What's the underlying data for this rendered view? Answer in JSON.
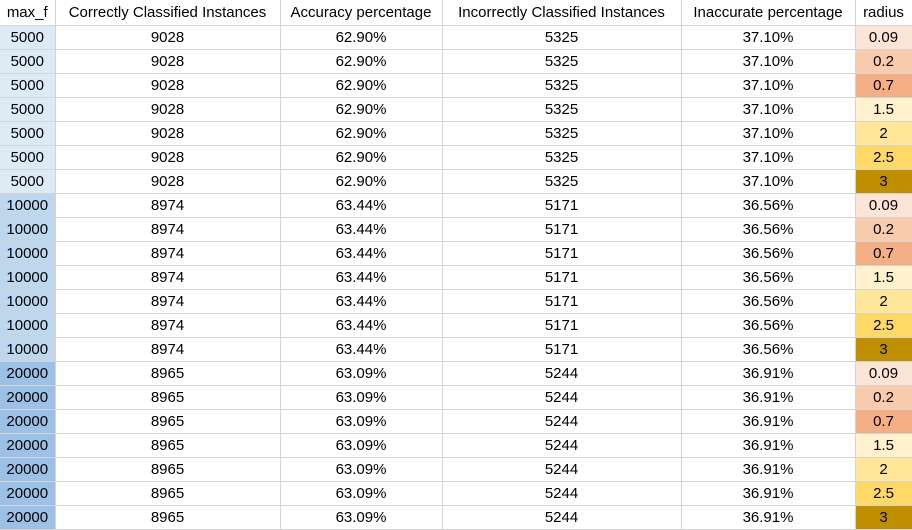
{
  "columns": [
    "max_f",
    "Correctly Classified Instances",
    "Accuracy percentage",
    "Incorrectly Classified Instances",
    "Inaccurate percentage",
    "radius"
  ],
  "rows": [
    {
      "max_f": "5000",
      "correct": "9028",
      "acc": "62.90%",
      "incorrect": "5325",
      "inacc": "37.10%",
      "radius": "0.09",
      "max_f_color": "#ddebf7",
      "radius_color": "#fce4d6"
    },
    {
      "max_f": "5000",
      "correct": "9028",
      "acc": "62.90%",
      "incorrect": "5325",
      "inacc": "37.10%",
      "radius": "0.2",
      "max_f_color": "#ddebf7",
      "radius_color": "#f8cbad"
    },
    {
      "max_f": "5000",
      "correct": "9028",
      "acc": "62.90%",
      "incorrect": "5325",
      "inacc": "37.10%",
      "radius": "0.7",
      "max_f_color": "#ddebf7",
      "radius_color": "#f4b084"
    },
    {
      "max_f": "5000",
      "correct": "9028",
      "acc": "62.90%",
      "incorrect": "5325",
      "inacc": "37.10%",
      "radius": "1.5",
      "max_f_color": "#ddebf7",
      "radius_color": "#fff2cc"
    },
    {
      "max_f": "5000",
      "correct": "9028",
      "acc": "62.90%",
      "incorrect": "5325",
      "inacc": "37.10%",
      "radius": "2",
      "max_f_color": "#ddebf7",
      "radius_color": "#ffe699"
    },
    {
      "max_f": "5000",
      "correct": "9028",
      "acc": "62.90%",
      "incorrect": "5325",
      "inacc": "37.10%",
      "radius": "2.5",
      "max_f_color": "#ddebf7",
      "radius_color": "#ffd966"
    },
    {
      "max_f": "5000",
      "correct": "9028",
      "acc": "62.90%",
      "incorrect": "5325",
      "inacc": "37.10%",
      "radius": "3",
      "max_f_color": "#ddebf7",
      "radius_color": "#bf8f00"
    },
    {
      "max_f": "10000",
      "correct": "8974",
      "acc": "63.44%",
      "incorrect": "5171",
      "inacc": "36.56%",
      "radius": "0.09",
      "max_f_color": "#bdd7ee",
      "radius_color": "#fce4d6"
    },
    {
      "max_f": "10000",
      "correct": "8974",
      "acc": "63.44%",
      "incorrect": "5171",
      "inacc": "36.56%",
      "radius": "0.2",
      "max_f_color": "#bdd7ee",
      "radius_color": "#f8cbad"
    },
    {
      "max_f": "10000",
      "correct": "8974",
      "acc": "63.44%",
      "incorrect": "5171",
      "inacc": "36.56%",
      "radius": "0.7",
      "max_f_color": "#bdd7ee",
      "radius_color": "#f4b084"
    },
    {
      "max_f": "10000",
      "correct": "8974",
      "acc": "63.44%",
      "incorrect": "5171",
      "inacc": "36.56%",
      "radius": "1.5",
      "max_f_color": "#bdd7ee",
      "radius_color": "#fff2cc"
    },
    {
      "max_f": "10000",
      "correct": "8974",
      "acc": "63.44%",
      "incorrect": "5171",
      "inacc": "36.56%",
      "radius": "2",
      "max_f_color": "#bdd7ee",
      "radius_color": "#ffe699"
    },
    {
      "max_f": "10000",
      "correct": "8974",
      "acc": "63.44%",
      "incorrect": "5171",
      "inacc": "36.56%",
      "radius": "2.5",
      "max_f_color": "#bdd7ee",
      "radius_color": "#ffd966"
    },
    {
      "max_f": "10000",
      "correct": "8974",
      "acc": "63.44%",
      "incorrect": "5171",
      "inacc": "36.56%",
      "radius": "3",
      "max_f_color": "#bdd7ee",
      "radius_color": "#bf8f00"
    },
    {
      "max_f": "20000",
      "correct": "8965",
      "acc": "63.09%",
      "incorrect": "5244",
      "inacc": "36.91%",
      "radius": "0.09",
      "max_f_color": "#9bc2e6",
      "radius_color": "#fce4d6"
    },
    {
      "max_f": "20000",
      "correct": "8965",
      "acc": "63.09%",
      "incorrect": "5244",
      "inacc": "36.91%",
      "radius": "0.2",
      "max_f_color": "#9bc2e6",
      "radius_color": "#f8cbad"
    },
    {
      "max_f": "20000",
      "correct": "8965",
      "acc": "63.09%",
      "incorrect": "5244",
      "inacc": "36.91%",
      "radius": "0.7",
      "max_f_color": "#9bc2e6",
      "radius_color": "#f4b084"
    },
    {
      "max_f": "20000",
      "correct": "8965",
      "acc": "63.09%",
      "incorrect": "5244",
      "inacc": "36.91%",
      "radius": "1.5",
      "max_f_color": "#9bc2e6",
      "radius_color": "#fff2cc"
    },
    {
      "max_f": "20000",
      "correct": "8965",
      "acc": "63.09%",
      "incorrect": "5244",
      "inacc": "36.91%",
      "radius": "2",
      "max_f_color": "#9bc2e6",
      "radius_color": "#ffe699"
    },
    {
      "max_f": "20000",
      "correct": "8965",
      "acc": "63.09%",
      "incorrect": "5244",
      "inacc": "36.91%",
      "radius": "2.5",
      "max_f_color": "#9bc2e6",
      "radius_color": "#ffd966"
    },
    {
      "max_f": "20000",
      "correct": "8965",
      "acc": "63.09%",
      "incorrect": "5244",
      "inacc": "36.91%",
      "radius": "3",
      "max_f_color": "#9bc2e6",
      "radius_color": "#bf8f00"
    }
  ]
}
